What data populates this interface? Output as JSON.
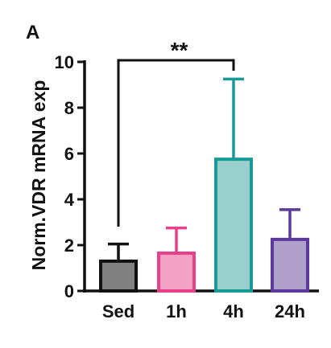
{
  "panel_label": "A",
  "chart_data": {
    "type": "bar",
    "ylabel": "Norm.VDR mRNA exp",
    "categories": [
      "Sed",
      "1h",
      "4h",
      "24h"
    ],
    "values": [
      1.3,
      1.65,
      5.75,
      2.25
    ],
    "errors": [
      0.75,
      1.1,
      3.5,
      1.3
    ],
    "ylim": [
      0,
      10
    ],
    "yticks": [
      "0",
      "2",
      "4",
      "6",
      "8",
      "10"
    ],
    "grid": false,
    "colors": {
      "fill": [
        "#808080",
        "#f4a2c4",
        "#99cfcc",
        "#b0a0cc"
      ],
      "stroke": [
        "#111111",
        "#e8408a",
        "#1a9a96",
        "#5a3a9a"
      ]
    },
    "significance": {
      "from": "Sed",
      "to": "4h",
      "label": "**"
    }
  }
}
